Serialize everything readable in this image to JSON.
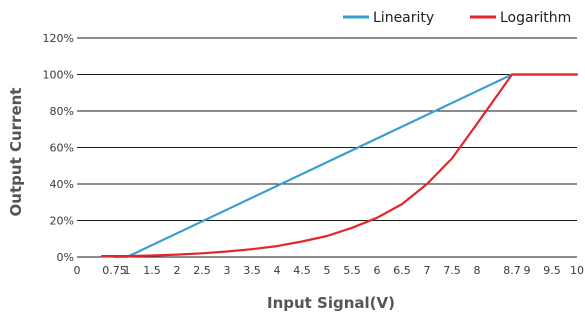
{
  "chart_data": {
    "type": "line",
    "title": "",
    "xlabel": "Input Signal(V)",
    "ylabel": "Output Current",
    "xlim": [
      0,
      10
    ],
    "ylim": [
      0,
      120
    ],
    "x_ticks": [
      {
        "v": 0,
        "label": "0"
      },
      {
        "v": 0.75,
        "label": "0.75"
      },
      {
        "v": 1,
        "label": "1"
      },
      {
        "v": 1.5,
        "label": "1.5"
      },
      {
        "v": 2,
        "label": "2"
      },
      {
        "v": 2.5,
        "label": "2.5"
      },
      {
        "v": 3,
        "label": "3"
      },
      {
        "v": 3.5,
        "label": "3.5"
      },
      {
        "v": 4,
        "label": "4"
      },
      {
        "v": 4.5,
        "label": "4.5"
      },
      {
        "v": 5,
        "label": "5"
      },
      {
        "v": 5.5,
        "label": "5.5"
      },
      {
        "v": 6,
        "label": "6"
      },
      {
        "v": 6.5,
        "label": "6.5"
      },
      {
        "v": 7,
        "label": "7"
      },
      {
        "v": 7.5,
        "label": "7.5"
      },
      {
        "v": 8,
        "label": "8"
      },
      {
        "v": 8.7,
        "label": "8.7"
      },
      {
        "v": 9,
        "label": "9"
      },
      {
        "v": 9.5,
        "label": "9.5"
      },
      {
        "v": 10,
        "label": "10"
      }
    ],
    "y_ticks": [
      {
        "v": 0,
        "label": "0%"
      },
      {
        "v": 20,
        "label": "20%"
      },
      {
        "v": 40,
        "label": "40%"
      },
      {
        "v": 60,
        "label": "60%"
      },
      {
        "v": 80,
        "label": "80%"
      },
      {
        "v": 100,
        "label": "100%"
      },
      {
        "v": 120,
        "label": "120%"
      }
    ],
    "grid": "horizontal",
    "legend_position": "top-right",
    "series": [
      {
        "name": "Linearity",
        "color": "#3a9fce",
        "points": [
          [
            0.75,
            0
          ],
          [
            1,
            0
          ],
          [
            8.7,
            100
          ],
          [
            10,
            100
          ]
        ]
      },
      {
        "name": "Logarithm",
        "color": "#e2262e",
        "points": [
          [
            0.5,
            0.5
          ],
          [
            1,
            0.5
          ],
          [
            1.5,
            0.8
          ],
          [
            2,
            1.3
          ],
          [
            2.5,
            2
          ],
          [
            3,
            3
          ],
          [
            3.5,
            4.3
          ],
          [
            4,
            6
          ],
          [
            4.5,
            8.5
          ],
          [
            5,
            11.5
          ],
          [
            5.5,
            16
          ],
          [
            6,
            21.5
          ],
          [
            6.5,
            29
          ],
          [
            7,
            40
          ],
          [
            7.5,
            54
          ],
          [
            8,
            73
          ],
          [
            8.7,
            100
          ],
          [
            9,
            100
          ],
          [
            9.5,
            100
          ],
          [
            10,
            100
          ]
        ]
      }
    ]
  }
}
